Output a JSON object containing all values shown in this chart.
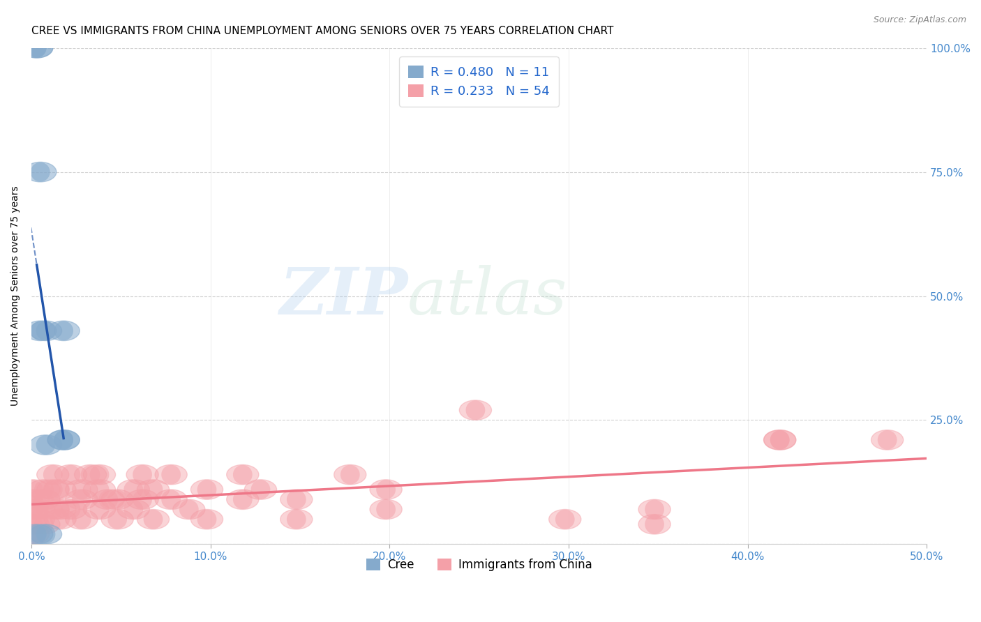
{
  "title": "CREE VS IMMIGRANTS FROM CHINA UNEMPLOYMENT AMONG SENIORS OVER 75 YEARS CORRELATION CHART",
  "source": "Source: ZipAtlas.com",
  "ylabel": "Unemployment Among Seniors over 75 years",
  "xlim": [
    0.0,
    0.5
  ],
  "ylim": [
    0.0,
    1.0
  ],
  "xticks": [
    0.0,
    0.1,
    0.2,
    0.3,
    0.4,
    0.5
  ],
  "yticks": [
    0.0,
    0.25,
    0.5,
    0.75,
    1.0
  ],
  "xtick_labels": [
    "0.0%",
    "10.0%",
    "20.0%",
    "30.0%",
    "40.0%",
    "50.0%"
  ],
  "ytick_labels_right": [
    "",
    "25.0%",
    "50.0%",
    "75.0%",
    "100.0%"
  ],
  "cree_color": "#85AACC",
  "china_color": "#F4A0A8",
  "cree_line_color": "#2255AA",
  "china_line_color": "#EE7788",
  "cree_R": 0.48,
  "cree_N": 11,
  "china_R": 0.233,
  "china_N": 54,
  "watermark_zip": "ZIP",
  "watermark_atlas": "atlas",
  "cree_points_x": [
    0.003,
    0.003,
    0.005,
    0.005,
    0.008,
    0.008,
    0.008,
    0.018,
    0.018,
    0.018,
    0.003
  ],
  "cree_points_y": [
    1.0,
    1.0,
    0.75,
    0.43,
    0.43,
    0.02,
    0.2,
    0.21,
    0.21,
    0.43,
    0.02
  ],
  "china_points_x": [
    0.001,
    0.001,
    0.001,
    0.001,
    0.001,
    0.004,
    0.004,
    0.007,
    0.007,
    0.007,
    0.012,
    0.012,
    0.012,
    0.016,
    0.016,
    0.016,
    0.022,
    0.022,
    0.028,
    0.028,
    0.028,
    0.033,
    0.038,
    0.038,
    0.038,
    0.043,
    0.048,
    0.048,
    0.057,
    0.057,
    0.062,
    0.062,
    0.068,
    0.068,
    0.078,
    0.078,
    0.088,
    0.098,
    0.098,
    0.118,
    0.118,
    0.128,
    0.148,
    0.148,
    0.178,
    0.198,
    0.198,
    0.248,
    0.298,
    0.348,
    0.348,
    0.418,
    0.418,
    0.478
  ],
  "china_points_y": [
    0.07,
    0.04,
    0.02,
    0.09,
    0.11,
    0.05,
    0.07,
    0.04,
    0.09,
    0.11,
    0.07,
    0.11,
    0.14,
    0.07,
    0.05,
    0.11,
    0.14,
    0.07,
    0.09,
    0.05,
    0.11,
    0.14,
    0.07,
    0.11,
    0.14,
    0.09,
    0.09,
    0.05,
    0.11,
    0.07,
    0.14,
    0.09,
    0.11,
    0.05,
    0.14,
    0.09,
    0.07,
    0.11,
    0.05,
    0.14,
    0.09,
    0.11,
    0.05,
    0.09,
    0.14,
    0.07,
    0.11,
    0.27,
    0.05,
    0.04,
    0.07,
    0.21,
    0.21,
    0.21
  ],
  "background_color": "#FFFFFF",
  "grid_color": "#CCCCCC",
  "title_fontsize": 11,
  "axis_label_fontsize": 10,
  "tick_fontsize": 11,
  "legend_fontsize": 13
}
